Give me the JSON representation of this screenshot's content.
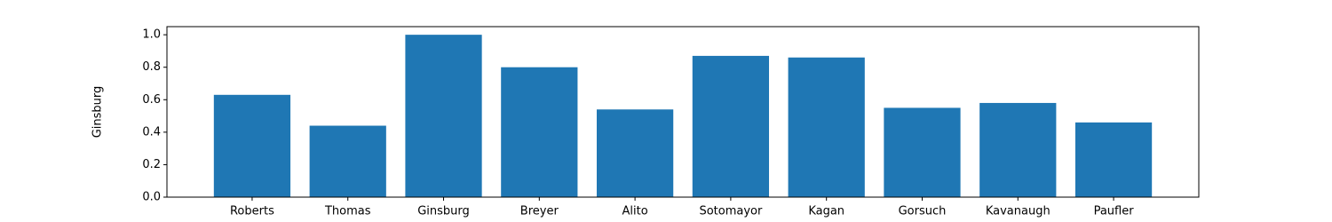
{
  "chart_data": {
    "type": "bar",
    "ylabel": "Ginsburg",
    "categories": [
      "Roberts",
      "Thomas",
      "Ginsburg",
      "Breyer",
      "Alito",
      "Sotomayor",
      "Kagan",
      "Gorsuch",
      "Kavanaugh",
      "Paufler"
    ],
    "values": [
      0.63,
      0.44,
      1.0,
      0.8,
      0.54,
      0.87,
      0.86,
      0.55,
      0.58,
      0.46
    ],
    "color": "#1f77b4",
    "ylim": [
      0,
      1.05
    ],
    "yticks": [
      {
        "value": 0,
        "label": "0.0"
      },
      0.2,
      0.4,
      0.6,
      0.8,
      {
        "value": 1.0,
        "label": "1.0"
      }
    ]
  }
}
